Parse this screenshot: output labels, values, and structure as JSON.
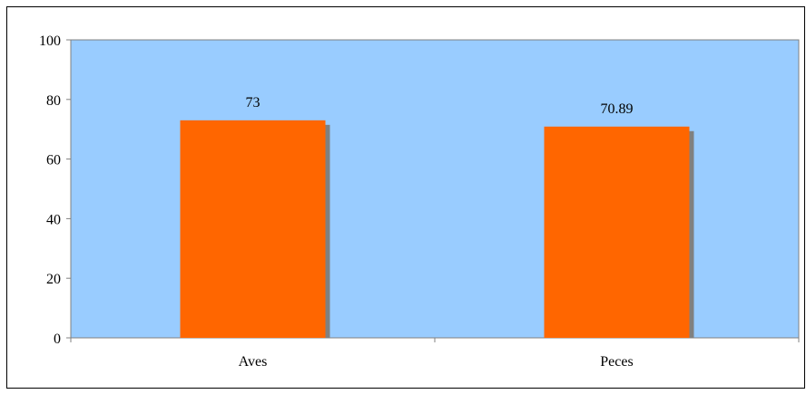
{
  "chart_data": {
    "type": "bar",
    "categories": [
      "Aves",
      "Peces"
    ],
    "values": [
      73,
      70.89
    ],
    "data_labels": [
      "73",
      "70.89"
    ],
    "title": "",
    "xlabel": "",
    "ylabel": "",
    "ylim": [
      0,
      100
    ],
    "yticks": [
      0,
      20,
      40,
      60,
      80,
      100
    ],
    "ytick_labels": [
      "0",
      "20",
      "40",
      "60",
      "80",
      "100"
    ],
    "grid": false,
    "legend": "none",
    "colors": {
      "plot_background": "#99ccff",
      "bar": "#ff6600",
      "bar_shadow": "#808080",
      "axis": "#808080",
      "chart_border": "#000000",
      "text": "#000000"
    }
  }
}
